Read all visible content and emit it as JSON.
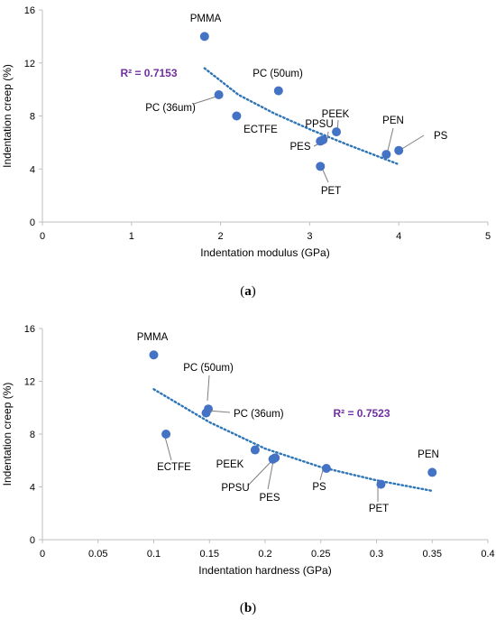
{
  "colors": {
    "marker": "#4472C4",
    "trend": "#2E75B6",
    "r2": "#7030A0",
    "axis": "#bfbfbf"
  },
  "chart_data": [
    {
      "type": "scatter",
      "caption_letter": "a",
      "xlabel": "Indentation modulus (GPa)",
      "ylabel": "Indentation creep (%)",
      "xlim": [
        0,
        5
      ],
      "ylim": [
        0,
        16
      ],
      "xticks": [
        0,
        1,
        2,
        3,
        4,
        5
      ],
      "xtick_labels": [
        "0",
        "1",
        "2",
        "3",
        "4",
        "5"
      ],
      "yticks": [
        0,
        4,
        8,
        12,
        16
      ],
      "ytick_labels": [
        "0",
        "4",
        "8",
        "12",
        "16"
      ],
      "r2": "R² = 0.7153",
      "trendline": {
        "style": "dotted",
        "x_range": [
          1.82,
          3.98
        ],
        "points": [
          [
            1.82,
            11.6
          ],
          [
            2.2,
            9.6
          ],
          [
            2.6,
            8.2
          ],
          [
            3.0,
            7.0
          ],
          [
            3.4,
            5.9
          ],
          [
            3.98,
            4.4
          ]
        ]
      },
      "points": [
        {
          "name": "PMMA",
          "x": 1.82,
          "y": 14.0
        },
        {
          "name": "PC (50um)",
          "x": 2.65,
          "y": 9.9
        },
        {
          "name": "PC (36um)",
          "x": 1.98,
          "y": 9.6
        },
        {
          "name": "ECTFE",
          "x": 2.18,
          "y": 8.0
        },
        {
          "name": "PEEK",
          "x": 3.3,
          "y": 6.8
        },
        {
          "name": "PPSU",
          "x": 3.15,
          "y": 6.2
        },
        {
          "name": "PES",
          "x": 3.12,
          "y": 6.1
        },
        {
          "name": "PET",
          "x": 3.12,
          "y": 4.2
        },
        {
          "name": "PEN",
          "x": 3.86,
          "y": 5.1
        },
        {
          "name": "PS",
          "x": 4.0,
          "y": 5.4
        }
      ]
    },
    {
      "type": "scatter",
      "caption_letter": "b",
      "xlabel": "Indentation hardness (GPa)",
      "ylabel": "Indentation creep (%)",
      "xlim": [
        0,
        0.4
      ],
      "ylim": [
        0,
        16
      ],
      "xticks": [
        0,
        0.05,
        0.1,
        0.15,
        0.2,
        0.25,
        0.3,
        0.35,
        0.4
      ],
      "xtick_labels": [
        "0",
        "0.05",
        "0.1",
        "0.15",
        "0.2",
        "0.25",
        "0.3",
        "0.35",
        "0.4"
      ],
      "yticks": [
        0,
        4,
        8,
        12,
        16
      ],
      "ytick_labels": [
        "0",
        "4",
        "8",
        "12",
        "16"
      ],
      "r2": "R² = 0.7523",
      "trendline": {
        "style": "dotted",
        "x_range": [
          0.1,
          0.35
        ],
        "points": [
          [
            0.1,
            11.4
          ],
          [
            0.15,
            8.9
          ],
          [
            0.2,
            6.9
          ],
          [
            0.25,
            5.5
          ],
          [
            0.3,
            4.5
          ],
          [
            0.35,
            3.7
          ]
        ]
      },
      "points": [
        {
          "name": "PMMA",
          "x": 0.1,
          "y": 14.0
        },
        {
          "name": "PC (50um)",
          "x": 0.149,
          "y": 9.9
        },
        {
          "name": "PC (36um)",
          "x": 0.147,
          "y": 9.6
        },
        {
          "name": "ECTFE",
          "x": 0.111,
          "y": 8.0
        },
        {
          "name": "PEEK",
          "x": 0.191,
          "y": 6.8
        },
        {
          "name": "PPSU",
          "x": 0.209,
          "y": 6.2
        },
        {
          "name": "PES",
          "x": 0.207,
          "y": 6.1
        },
        {
          "name": "PS",
          "x": 0.255,
          "y": 5.4
        },
        {
          "name": "PET",
          "x": 0.304,
          "y": 4.2
        },
        {
          "name": "PEN",
          "x": 0.35,
          "y": 5.1
        }
      ]
    }
  ]
}
